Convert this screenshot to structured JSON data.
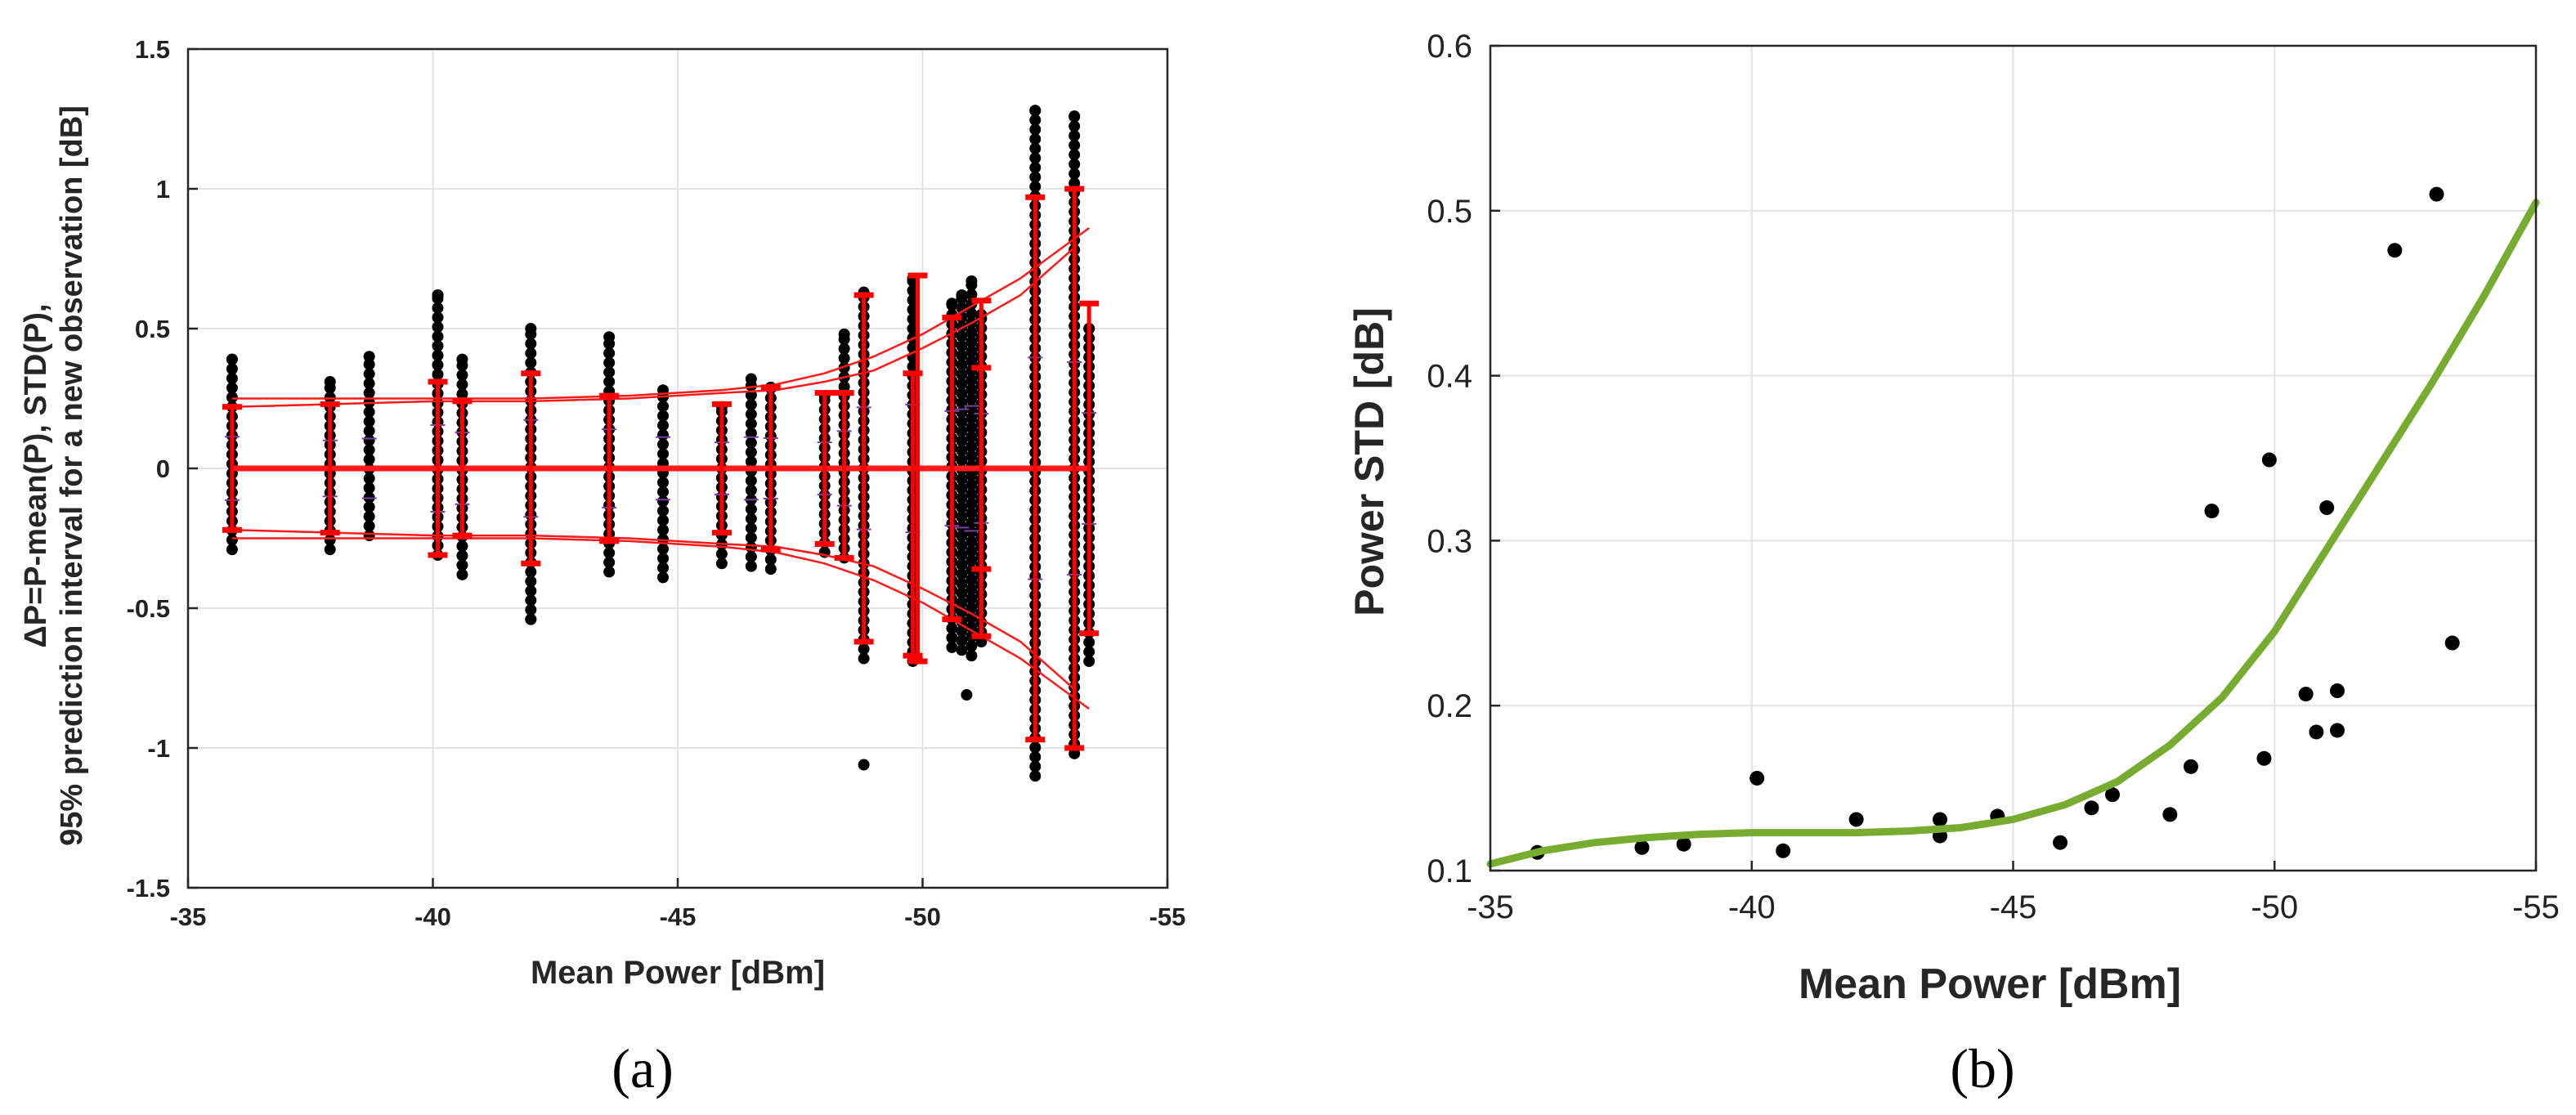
{
  "chart_data": [
    {
      "panel": "(a)",
      "type": "scatter",
      "xlabel": "Mean Power [dBm]",
      "ylabel_lines": [
        "ΔP=P-mean(P), STD(P),",
        "95% prediction interval for a new observation [dB]"
      ],
      "xlim": [
        -35,
        -55
      ],
      "ylim": [
        -1.5,
        1.5
      ],
      "xticks": [
        -35,
        -40,
        -45,
        -50,
        -55
      ],
      "yticks": [
        -1.5,
        -1,
        -0.5,
        0,
        0.5,
        1,
        1.5
      ],
      "xtick_labels": [
        "-35",
        "-40",
        "-45",
        "-50",
        "-55"
      ],
      "ytick_labels": [
        "-1.5",
        "-1",
        "-0.5",
        "0",
        "0.5",
        "1",
        "1.5"
      ],
      "grid": true,
      "scatter_columns": [
        {
          "x": -35.9,
          "min": -0.29,
          "max": 0.39
        },
        {
          "x": -37.9,
          "min": -0.29,
          "max": 0.31
        },
        {
          "x": -38.7,
          "min": -0.24,
          "max": 0.4
        },
        {
          "x": -40.1,
          "min": -0.31,
          "max": 0.62
        },
        {
          "x": -40.6,
          "min": -0.38,
          "max": 0.39
        },
        {
          "x": -42.0,
          "min": -0.54,
          "max": 0.5
        },
        {
          "x": -43.6,
          "min": -0.37,
          "max": 0.47
        },
        {
          "x": -44.7,
          "min": -0.39,
          "max": 0.28
        },
        {
          "x": -45.9,
          "min": -0.34,
          "max": 0.22
        },
        {
          "x": -46.5,
          "min": -0.35,
          "max": 0.32
        },
        {
          "x": -46.9,
          "min": -0.36,
          "max": 0.29
        },
        {
          "x": -48.0,
          "min": -0.3,
          "max": 0.26
        },
        {
          "x": -48.4,
          "min": -0.32,
          "max": 0.48
        },
        {
          "x": -48.8,
          "min": -0.68,
          "max": 0.63
        },
        {
          "x": -49.8,
          "min": -0.69,
          "max": 0.68
        },
        {
          "x": -50.6,
          "min": -0.64,
          "max": 0.59
        },
        {
          "x": -50.8,
          "min": -0.65,
          "max": 0.62
        },
        {
          "x": -51.0,
          "min": -0.67,
          "max": 0.67
        },
        {
          "x": -51.2,
          "min": -0.62,
          "max": 0.55
        },
        {
          "x": -52.3,
          "min": -1.1,
          "max": 1.28
        },
        {
          "x": -53.1,
          "min": -1.02,
          "max": 1.26
        },
        {
          "x": -53.4,
          "min": -0.69,
          "max": 0.5
        }
      ],
      "outliers": [
        {
          "x": -40.1,
          "y": 0.62
        },
        {
          "x": -42.0,
          "y": -0.54
        },
        {
          "x": -48.8,
          "y": -1.06
        },
        {
          "x": -50.9,
          "y": -0.81
        }
      ],
      "prediction_curves": [
        {
          "x": [
            -35.9,
            -38.0,
            -40.0,
            -42.0,
            -44.0,
            -45.9,
            -47.0,
            -48.0,
            -49.0,
            -50.0,
            -51.0,
            -52.0,
            -53.4
          ],
          "y": [
            0.25,
            0.25,
            0.25,
            0.25,
            0.26,
            0.28,
            0.3,
            0.34,
            0.4,
            0.48,
            0.58,
            0.68,
            0.86
          ]
        },
        {
          "x": [
            -35.9,
            -38.0,
            -40.0,
            -42.0,
            -44.0,
            -45.9,
            -47.0,
            -48.0,
            -49.0,
            -50.0,
            -51.0,
            -52.0,
            -53.1
          ],
          "y": [
            0.22,
            0.23,
            0.24,
            0.24,
            0.25,
            0.27,
            0.28,
            0.31,
            0.35,
            0.43,
            0.52,
            0.62,
            0.79
          ]
        }
      ],
      "error_bars": [
        {
          "x": -35.9,
          "low": -0.22,
          "high": 0.22
        },
        {
          "x": -37.9,
          "low": -0.23,
          "high": 0.23
        },
        {
          "x": -40.1,
          "low": -0.31,
          "high": 0.31
        },
        {
          "x": -40.6,
          "low": -0.24,
          "high": 0.24
        },
        {
          "x": -42.0,
          "low": -0.34,
          "high": 0.34
        },
        {
          "x": -43.6,
          "low": -0.26,
          "high": 0.26
        },
        {
          "x": -45.9,
          "low": -0.23,
          "high": 0.23
        },
        {
          "x": -46.9,
          "low": -0.29,
          "high": 0.29
        },
        {
          "x": -48.0,
          "low": -0.27,
          "high": 0.27
        },
        {
          "x": -48.4,
          "low": -0.32,
          "high": 0.27
        },
        {
          "x": -48.8,
          "low": -0.62,
          "high": 0.62
        },
        {
          "x": -49.8,
          "low": -0.67,
          "high": 0.34
        },
        {
          "x": -49.9,
          "low": -0.69,
          "high": 0.69
        },
        {
          "x": -50.6,
          "low": -0.54,
          "high": 0.54
        },
        {
          "x": -51.2,
          "low": -0.36,
          "high": 0.36
        },
        {
          "x": -51.2,
          "low": -0.6,
          "high": 0.6
        },
        {
          "x": -52.3,
          "low": -0.97,
          "high": 0.97
        },
        {
          "x": -53.1,
          "low": -1.0,
          "high": 1.0
        },
        {
          "x": -53.4,
          "low": -0.59,
          "high": 0.59
        }
      ]
    },
    {
      "panel": "(b)",
      "type": "scatter",
      "xlabel": "Mean Power [dBm]",
      "ylabel": "Power STD [dB]",
      "xlim": [
        -35,
        -55
      ],
      "ylim": [
        0.1,
        0.6
      ],
      "xticks": [
        -35,
        -40,
        -45,
        -50,
        -55
      ],
      "yticks": [
        0.1,
        0.2,
        0.3,
        0.4,
        0.5,
        0.6
      ],
      "xtick_labels": [
        "-35",
        "-40",
        "-45",
        "-50",
        "-55"
      ],
      "ytick_labels": [
        "0.1",
        "0.2",
        "0.3",
        "0.4",
        "0.5",
        "0.6"
      ],
      "grid": true,
      "points": [
        {
          "x": -35.9,
          "y": 0.111
        },
        {
          "x": -37.9,
          "y": 0.114
        },
        {
          "x": -38.7,
          "y": 0.116
        },
        {
          "x": -40.1,
          "y": 0.156
        },
        {
          "x": -40.6,
          "y": 0.112
        },
        {
          "x": -42.0,
          "y": 0.131
        },
        {
          "x": -43.6,
          "y": 0.131
        },
        {
          "x": -43.6,
          "y": 0.121
        },
        {
          "x": -44.7,
          "y": 0.133
        },
        {
          "x": -45.9,
          "y": 0.117
        },
        {
          "x": -46.5,
          "y": 0.138
        },
        {
          "x": -46.9,
          "y": 0.146
        },
        {
          "x": -48.0,
          "y": 0.134
        },
        {
          "x": -48.4,
          "y": 0.163
        },
        {
          "x": -48.8,
          "y": 0.318
        },
        {
          "x": -49.8,
          "y": 0.168
        },
        {
          "x": -49.9,
          "y": 0.349
        },
        {
          "x": -50.6,
          "y": 0.207
        },
        {
          "x": -50.8,
          "y": 0.184
        },
        {
          "x": -51.0,
          "y": 0.32
        },
        {
          "x": -51.2,
          "y": 0.209
        },
        {
          "x": -51.2,
          "y": 0.185
        },
        {
          "x": -52.3,
          "y": 0.476
        },
        {
          "x": -53.1,
          "y": 0.51
        },
        {
          "x": -53.4,
          "y": 0.238
        }
      ],
      "fit_curve": {
        "color": "#77AC30",
        "x": [
          -35,
          -36,
          -37,
          -38,
          -39,
          -40,
          -41,
          -42,
          -43,
          -44,
          -45,
          -46,
          -47,
          -48,
          -49,
          -50,
          -51,
          -52,
          -53,
          -54,
          -55
        ],
        "y": [
          0.104,
          0.112,
          0.117,
          0.12,
          0.122,
          0.123,
          0.123,
          0.123,
          0.124,
          0.126,
          0.131,
          0.14,
          0.154,
          0.176,
          0.205,
          0.245,
          0.295,
          0.345,
          0.395,
          0.448,
          0.505
        ]
      }
    }
  ],
  "colors": {
    "points": "#000000",
    "prediction": "#ff1a1a",
    "errorbar": "#ff0000",
    "fit": "#77AC30",
    "grid": "#e3e3e3",
    "median_tick": "#7a3fa5"
  },
  "panel_labels": {
    "a": "(a)",
    "b": "(b)"
  }
}
